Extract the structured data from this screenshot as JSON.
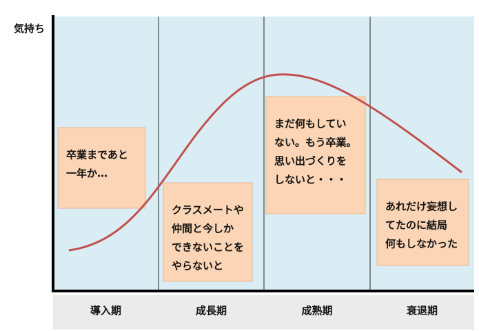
{
  "y_axis_label": "気持ち",
  "phases": [
    "導入期",
    "成長期",
    "成熟期",
    "衰退期"
  ],
  "notes": [
    {
      "lines": [
        "卒業まであと",
        "一年か…"
      ]
    },
    {
      "lines": [
        "クラスメートや",
        "仲間と今しか",
        "できないことを",
        "やらないと"
      ]
    },
    {
      "lines": [
        "まだ何もしてい",
        "ない。もう卒業。",
        "思い出づくりを",
        "しないと・・・"
      ]
    },
    {
      "lines": [
        "あれだけ妄想し",
        "てたのに結局",
        "何もしなかった"
      ]
    }
  ]
}
